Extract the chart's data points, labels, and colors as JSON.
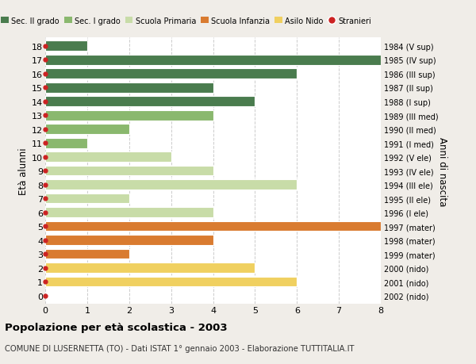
{
  "ages": [
    18,
    17,
    16,
    15,
    14,
    13,
    12,
    11,
    10,
    9,
    8,
    7,
    6,
    5,
    4,
    3,
    2,
    1,
    0
  ],
  "right_labels": [
    "1984 (V sup)",
    "1985 (IV sup)",
    "1986 (III sup)",
    "1987 (II sup)",
    "1988 (I sup)",
    "1989 (III med)",
    "1990 (II med)",
    "1991 (I med)",
    "1992 (V ele)",
    "1993 (IV ele)",
    "1994 (III ele)",
    "1995 (II ele)",
    "1996 (I ele)",
    "1997 (mater)",
    "1998 (mater)",
    "1999 (mater)",
    "2000 (nido)",
    "2001 (nido)",
    "2002 (nido)"
  ],
  "values": [
    1,
    8,
    6,
    4,
    5,
    4,
    2,
    1,
    3,
    4,
    6,
    2,
    4,
    8,
    4,
    2,
    5,
    6,
    0
  ],
  "colors": [
    "#4a7c4e",
    "#4a7c4e",
    "#4a7c4e",
    "#4a7c4e",
    "#4a7c4e",
    "#8ab86e",
    "#8ab86e",
    "#8ab86e",
    "#c8dca8",
    "#c8dca8",
    "#c8dca8",
    "#c8dca8",
    "#c8dca8",
    "#d97b30",
    "#d97b30",
    "#d97b30",
    "#f0d060",
    "#f0d060",
    "#f0d060"
  ],
  "legend_labels": [
    "Sec. II grado",
    "Sec. I grado",
    "Scuola Primaria",
    "Scuola Infanzia",
    "Asilo Nido",
    "Stranieri"
  ],
  "legend_colors": [
    "#4a7c4e",
    "#8ab86e",
    "#c8dca8",
    "#d97b30",
    "#f0d060",
    "#cc2222"
  ],
  "ylabel": "Età alunni",
  "right_ylabel": "Anni di nascita",
  "title": "Popolazione per età scolastica - 2003",
  "subtitle": "COMUNE DI LUSERNETTA (TO) - Dati ISTAT 1° gennaio 2003 - Elaborazione TUTTITALIA.IT",
  "xlim": [
    0,
    8
  ],
  "xticks": [
    0,
    1,
    2,
    3,
    4,
    5,
    6,
    7,
    8
  ],
  "stranieri_dot_color": "#cc2222",
  "bar_height": 0.72,
  "bg_color": "#f0ede8",
  "plot_bg_color": "#ffffff",
  "grid_color": "#cccccc"
}
